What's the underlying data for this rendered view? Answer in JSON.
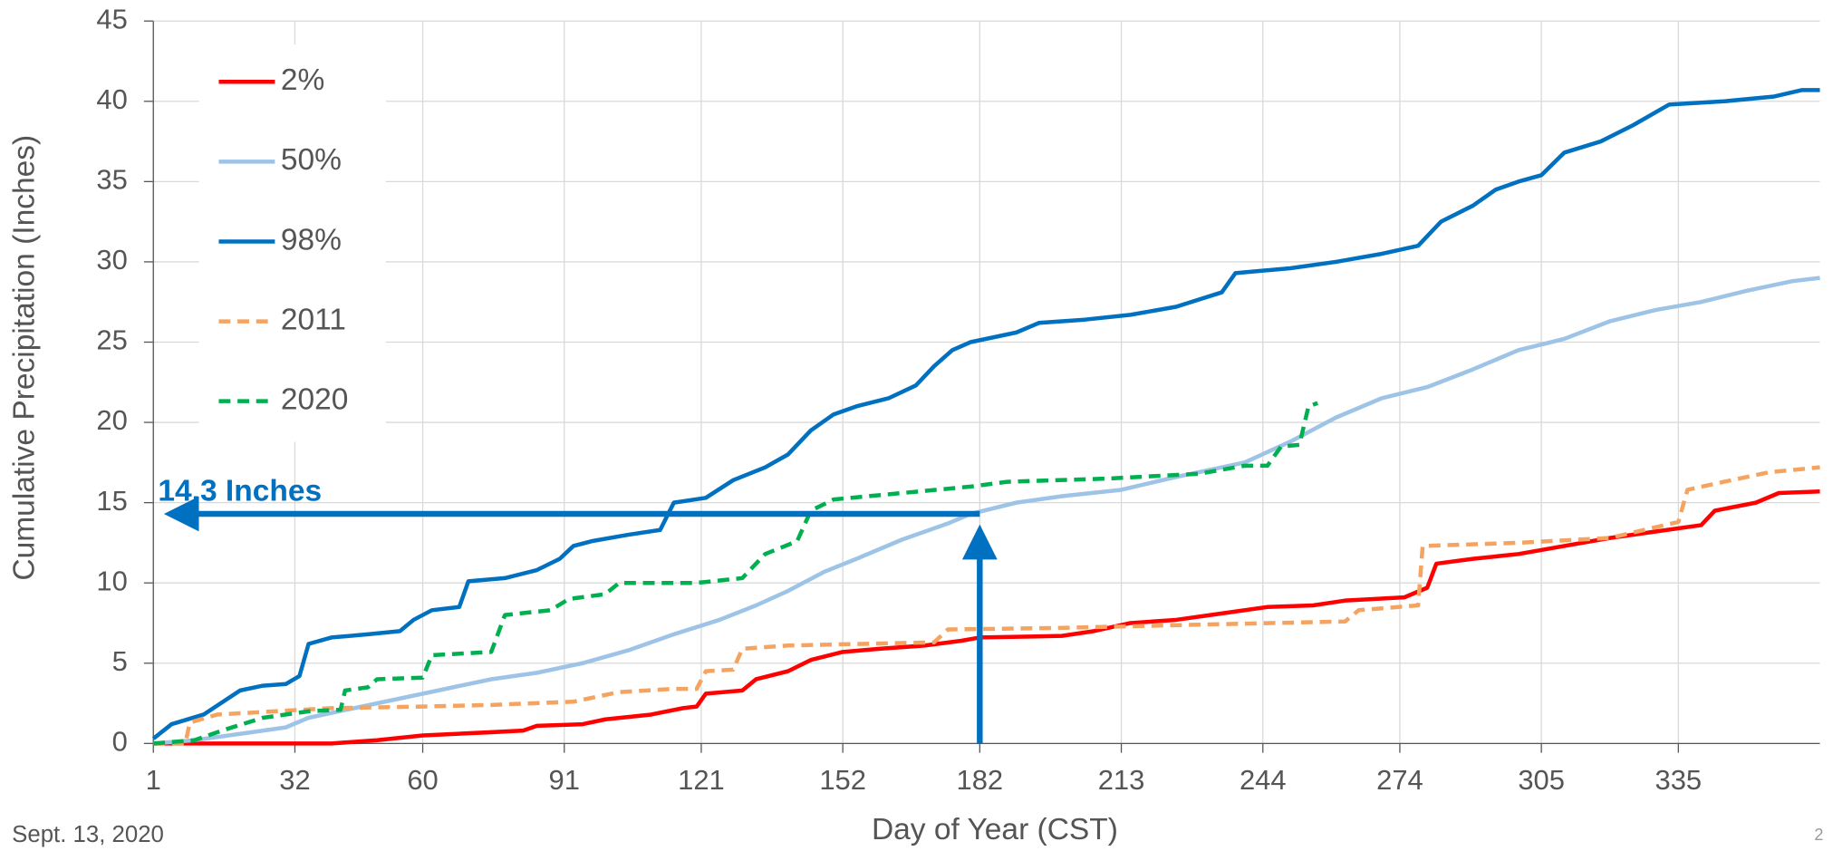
{
  "chart_data": {
    "type": "line",
    "x_label": "Day of Year (CST)",
    "y_label": "Cumulative  Precipitation  (Inches)",
    "footer": "Sept. 13, 2020",
    "page_number": "2",
    "xlim": [
      1,
      366
    ],
    "ylim": [
      0,
      45
    ],
    "xticks": [
      1,
      32,
      60,
      91,
      121,
      152,
      182,
      213,
      244,
      274,
      305,
      335
    ],
    "yticks": [
      0,
      5,
      10,
      15,
      20,
      25,
      30,
      35,
      40,
      45
    ],
    "grid": true,
    "legend": "upper left",
    "annotation": {
      "text": "14.3 Inches",
      "x": 182,
      "y": 14.3,
      "color": "#0070c0"
    },
    "series": [
      {
        "name": "2%",
        "color": "#ff0000",
        "dashed": false,
        "x": [
          1,
          40,
          50,
          60,
          75,
          82,
          85,
          95,
          100,
          110,
          117,
          120,
          122,
          130,
          133,
          140,
          145,
          152,
          160,
          170,
          178,
          182,
          200,
          207,
          215,
          225,
          235,
          245,
          255,
          262,
          275,
          280,
          282,
          290,
          300,
          310,
          320,
          330,
          340,
          343,
          352,
          357,
          366
        ],
        "values": [
          0,
          0,
          0.2,
          0.5,
          0.7,
          0.8,
          1.1,
          1.2,
          1.5,
          1.8,
          2.2,
          2.3,
          3.1,
          3.3,
          4.0,
          4.5,
          5.2,
          5.7,
          5.9,
          6.1,
          6.4,
          6.6,
          6.7,
          7.0,
          7.5,
          7.7,
          8.1,
          8.5,
          8.6,
          8.9,
          9.1,
          9.7,
          11.2,
          11.5,
          11.8,
          12.3,
          12.8,
          13.2,
          13.6,
          14.5,
          15.0,
          15.6,
          15.7
        ]
      },
      {
        "name": "50%",
        "color": "#9dc3e6",
        "dashed": false,
        "x": [
          1,
          10,
          20,
          30,
          35,
          45,
          55,
          65,
          75,
          85,
          95,
          105,
          115,
          125,
          133,
          140,
          148,
          155,
          165,
          175,
          180,
          190,
          200,
          213,
          225,
          240,
          250,
          260,
          270,
          280,
          290,
          300,
          310,
          320,
          330,
          340,
          350,
          360,
          366
        ],
        "values": [
          0,
          0.2,
          0.6,
          1.0,
          1.6,
          2.2,
          2.8,
          3.4,
          4.0,
          4.4,
          5.0,
          5.8,
          6.8,
          7.7,
          8.6,
          9.5,
          10.7,
          11.5,
          12.7,
          13.7,
          14.3,
          15.0,
          15.4,
          15.8,
          16.6,
          17.5,
          18.8,
          20.3,
          21.5,
          22.2,
          23.3,
          24.5,
          25.2,
          26.3,
          27.0,
          27.5,
          28.2,
          28.8,
          29.0
        ]
      },
      {
        "name": "98%",
        "color": "#0070c0",
        "dashed": false,
        "x": [
          1,
          5,
          12,
          20,
          25,
          30,
          33,
          35,
          40,
          48,
          55,
          58,
          62,
          68,
          70,
          78,
          85,
          90,
          93,
          97,
          105,
          112,
          115,
          122,
          128,
          135,
          140,
          145,
          150,
          155,
          162,
          168,
          172,
          176,
          180,
          190,
          195,
          205,
          215,
          225,
          235,
          238,
          250,
          260,
          270,
          278,
          283,
          290,
          295,
          300,
          305,
          310,
          318,
          325,
          333,
          345,
          356,
          362,
          366
        ],
        "values": [
          0.3,
          1.2,
          1.8,
          3.3,
          3.6,
          3.7,
          4.2,
          6.2,
          6.6,
          6.8,
          7.0,
          7.7,
          8.3,
          8.5,
          10.1,
          10.3,
          10.8,
          11.5,
          12.3,
          12.6,
          13.0,
          13.3,
          15.0,
          15.3,
          16.4,
          17.2,
          18.0,
          19.5,
          20.5,
          21.0,
          21.5,
          22.3,
          23.5,
          24.5,
          25.0,
          25.6,
          26.2,
          26.4,
          26.7,
          27.2,
          28.1,
          29.3,
          29.6,
          30.0,
          30.5,
          31.0,
          32.5,
          33.5,
          34.5,
          35.0,
          35.4,
          36.8,
          37.5,
          38.5,
          39.8,
          40.0,
          40.3,
          40.7,
          40.7
        ]
      },
      {
        "name": "2011",
        "color": "#f4a460",
        "dashed": true,
        "x": [
          1,
          8,
          9,
          15,
          40,
          60,
          75,
          93,
          103,
          115,
          120,
          122,
          128,
          130,
          140,
          172,
          175,
          200,
          230,
          262,
          265,
          278,
          279,
          300,
          320,
          335,
          337,
          345,
          355,
          366
        ],
        "values": [
          0,
          0,
          1.3,
          1.8,
          2.2,
          2.3,
          2.4,
          2.6,
          3.2,
          3.4,
          3.4,
          4.5,
          4.6,
          5.9,
          6.1,
          6.3,
          7.1,
          7.2,
          7.4,
          7.6,
          8.3,
          8.6,
          12.3,
          12.5,
          12.8,
          13.8,
          15.8,
          16.3,
          16.9,
          17.2
        ]
      },
      {
        "name": "2020",
        "color": "#00b050",
        "dashed": true,
        "x": [
          1,
          10,
          16,
          25,
          35,
          42,
          43,
          48,
          50,
          60,
          62,
          75,
          78,
          88,
          92,
          100,
          103,
          120,
          130,
          135,
          142,
          145,
          150,
          180,
          188,
          210,
          230,
          240,
          245,
          248,
          252,
          254,
          256
        ],
        "values": [
          0,
          0.2,
          0.8,
          1.6,
          2.0,
          2.1,
          3.3,
          3.5,
          4.0,
          4.1,
          5.5,
          5.7,
          8.0,
          8.3,
          9.0,
          9.3,
          10.0,
          10.0,
          10.3,
          11.8,
          12.6,
          14.5,
          15.2,
          16.0,
          16.3,
          16.5,
          16.8,
          17.3,
          17.3,
          18.5,
          18.6,
          21.0,
          21.2
        ]
      }
    ]
  }
}
